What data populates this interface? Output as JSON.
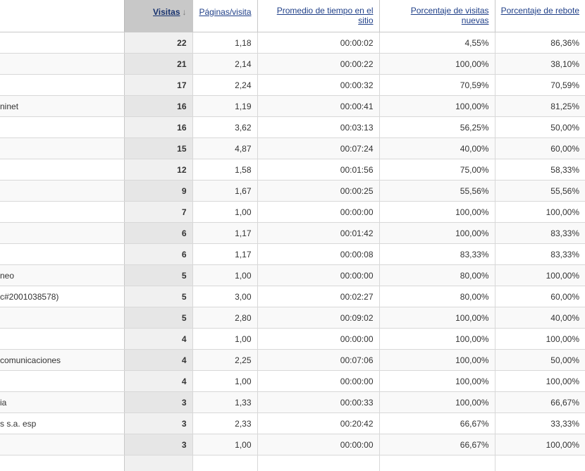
{
  "headers": {
    "visits": "Visitas",
    "pages_per_visit": "Páginas/visita",
    "avg_time": "Promedio de tiempo en el sitio",
    "new_visits": "Porcentaje de visitas nuevas",
    "bounce": "Porcentaje de rebote",
    "sort_icon": "arrow-down-icon",
    "sort_glyph": "↓"
  },
  "rows": [
    {
      "name": "",
      "visits": "22",
      "ppv": "1,18",
      "time": "00:00:02",
      "new": "4,55%",
      "bounce": "86,36%"
    },
    {
      "name": "",
      "visits": "21",
      "ppv": "2,14",
      "time": "00:00:22",
      "new": "100,00%",
      "bounce": "38,10%"
    },
    {
      "name": "",
      "visits": "17",
      "ppv": "2,24",
      "time": "00:00:32",
      "new": "70,59%",
      "bounce": "70,59%"
    },
    {
      "name": "ninet",
      "visits": "16",
      "ppv": "1,19",
      "time": "00:00:41",
      "new": "100,00%",
      "bounce": "81,25%"
    },
    {
      "name": "",
      "visits": "16",
      "ppv": "3,62",
      "time": "00:03:13",
      "new": "56,25%",
      "bounce": "50,00%"
    },
    {
      "name": "",
      "visits": "15",
      "ppv": "4,87",
      "time": "00:07:24",
      "new": "40,00%",
      "bounce": "60,00%"
    },
    {
      "name": "",
      "visits": "12",
      "ppv": "1,58",
      "time": "00:01:56",
      "new": "75,00%",
      "bounce": "58,33%"
    },
    {
      "name": "",
      "visits": "9",
      "ppv": "1,67",
      "time": "00:00:25",
      "new": "55,56%",
      "bounce": "55,56%"
    },
    {
      "name": "",
      "visits": "7",
      "ppv": "1,00",
      "time": "00:00:00",
      "new": "100,00%",
      "bounce": "100,00%"
    },
    {
      "name": "",
      "visits": "6",
      "ppv": "1,17",
      "time": "00:01:42",
      "new": "100,00%",
      "bounce": "83,33%"
    },
    {
      "name": "",
      "visits": "6",
      "ppv": "1,17",
      "time": "00:00:08",
      "new": "83,33%",
      "bounce": "83,33%"
    },
    {
      "name": "neo",
      "visits": "5",
      "ppv": "1,00",
      "time": "00:00:00",
      "new": "80,00%",
      "bounce": "100,00%"
    },
    {
      "name": "c#2001038578)",
      "visits": "5",
      "ppv": "3,00",
      "time": "00:02:27",
      "new": "80,00%",
      "bounce": "60,00%"
    },
    {
      "name": "",
      "visits": "5",
      "ppv": "2,80",
      "time": "00:09:02",
      "new": "100,00%",
      "bounce": "40,00%"
    },
    {
      "name": "",
      "visits": "4",
      "ppv": "1,00",
      "time": "00:00:00",
      "new": "100,00%",
      "bounce": "100,00%"
    },
    {
      "name": "comunicaciones",
      "visits": "4",
      "ppv": "2,25",
      "time": "00:07:06",
      "new": "100,00%",
      "bounce": "50,00%"
    },
    {
      "name": "",
      "visits": "4",
      "ppv": "1,00",
      "time": "00:00:00",
      "new": "100,00%",
      "bounce": "100,00%"
    },
    {
      "name": "ia",
      "visits": "3",
      "ppv": "1,33",
      "time": "00:00:33",
      "new": "100,00%",
      "bounce": "66,67%"
    },
    {
      "name": "s s.a. esp",
      "visits": "3",
      "ppv": "2,33",
      "time": "00:20:42",
      "new": "66,67%",
      "bounce": "33,33%"
    },
    {
      "name": "",
      "visits": "3",
      "ppv": "1,00",
      "time": "00:00:00",
      "new": "66,67%",
      "bounce": "100,00%"
    },
    {
      "name": "",
      "visits": "",
      "ppv": "",
      "time": "",
      "new": "",
      "bounce": ""
    }
  ]
}
